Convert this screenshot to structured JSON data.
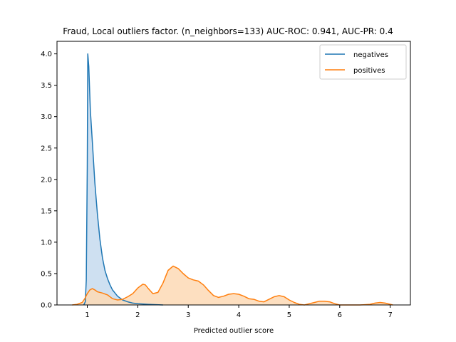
{
  "chart_data": {
    "type": "area",
    "title": "Fraud, Local outliers factor. (n_neighbors=133) AUC-ROC: 0.941, AUC-PR: 0.4",
    "xlabel": "Predicted outlier score",
    "ylabel": "",
    "xlim": [
      0.4,
      7.4
    ],
    "ylim": [
      0,
      4.2
    ],
    "xticks": [
      1,
      2,
      3,
      4,
      5,
      6,
      7
    ],
    "yticks": [
      0.0,
      0.5,
      1.0,
      1.5,
      2.0,
      2.5,
      3.0,
      3.5,
      4.0
    ],
    "ytick_labels": [
      "0.0",
      "0.5",
      "1.0",
      "1.5",
      "2.0",
      "2.5",
      "3.0",
      "3.5",
      "4.0"
    ],
    "grid": false,
    "legend_position": "top-right",
    "series": [
      {
        "name": "negatives",
        "color": "#1f77b4",
        "fill": "#c6dbef",
        "points": [
          [
            0.93,
            0.0
          ],
          [
            0.96,
            0.05
          ],
          [
            0.98,
            0.4
          ],
          [
            1.0,
            2.2
          ],
          [
            1.01,
            4.0
          ],
          [
            1.03,
            3.8
          ],
          [
            1.06,
            3.1
          ],
          [
            1.1,
            2.6
          ],
          [
            1.15,
            1.95
          ],
          [
            1.2,
            1.45
          ],
          [
            1.25,
            1.05
          ],
          [
            1.3,
            0.75
          ],
          [
            1.35,
            0.55
          ],
          [
            1.4,
            0.42
          ],
          [
            1.45,
            0.32
          ],
          [
            1.5,
            0.24
          ],
          [
            1.6,
            0.14
          ],
          [
            1.7,
            0.08
          ],
          [
            1.8,
            0.05
          ],
          [
            1.9,
            0.03
          ],
          [
            2.0,
            0.02
          ],
          [
            2.2,
            0.01
          ],
          [
            2.5,
            0.0
          ]
        ]
      },
      {
        "name": "positives",
        "color": "#ff7f0e",
        "fill": "#fdd9b5",
        "points": [
          [
            0.7,
            0.0
          ],
          [
            0.8,
            0.01
          ],
          [
            0.9,
            0.04
          ],
          [
            0.95,
            0.1
          ],
          [
            1.0,
            0.18
          ],
          [
            1.05,
            0.24
          ],
          [
            1.1,
            0.26
          ],
          [
            1.15,
            0.24
          ],
          [
            1.2,
            0.21
          ],
          [
            1.3,
            0.19
          ],
          [
            1.4,
            0.16
          ],
          [
            1.5,
            0.1
          ],
          [
            1.6,
            0.08
          ],
          [
            1.7,
            0.09
          ],
          [
            1.8,
            0.13
          ],
          [
            1.9,
            0.18
          ],
          [
            2.0,
            0.27
          ],
          [
            2.1,
            0.33
          ],
          [
            2.15,
            0.32
          ],
          [
            2.2,
            0.27
          ],
          [
            2.3,
            0.18
          ],
          [
            2.4,
            0.2
          ],
          [
            2.5,
            0.35
          ],
          [
            2.6,
            0.55
          ],
          [
            2.7,
            0.62
          ],
          [
            2.8,
            0.58
          ],
          [
            2.9,
            0.5
          ],
          [
            3.0,
            0.43
          ],
          [
            3.1,
            0.4
          ],
          [
            3.2,
            0.38
          ],
          [
            3.3,
            0.32
          ],
          [
            3.4,
            0.23
          ],
          [
            3.5,
            0.15
          ],
          [
            3.6,
            0.12
          ],
          [
            3.7,
            0.14
          ],
          [
            3.8,
            0.17
          ],
          [
            3.9,
            0.18
          ],
          [
            4.0,
            0.17
          ],
          [
            4.1,
            0.14
          ],
          [
            4.2,
            0.1
          ],
          [
            4.3,
            0.09
          ],
          [
            4.4,
            0.06
          ],
          [
            4.5,
            0.05
          ],
          [
            4.6,
            0.09
          ],
          [
            4.7,
            0.13
          ],
          [
            4.8,
            0.15
          ],
          [
            4.9,
            0.13
          ],
          [
            5.0,
            0.08
          ],
          [
            5.1,
            0.04
          ],
          [
            5.2,
            0.01
          ],
          [
            5.3,
            0.0
          ],
          [
            5.4,
            0.02
          ],
          [
            5.5,
            0.04
          ],
          [
            5.6,
            0.06
          ],
          [
            5.7,
            0.06
          ],
          [
            5.8,
            0.05
          ],
          [
            5.9,
            0.02
          ],
          [
            6.0,
            0.0
          ],
          [
            6.2,
            0.0
          ],
          [
            6.4,
            0.0
          ],
          [
            6.6,
            0.01
          ],
          [
            6.7,
            0.03
          ],
          [
            6.8,
            0.04
          ],
          [
            6.9,
            0.03
          ],
          [
            7.0,
            0.01
          ],
          [
            7.05,
            0.0
          ]
        ]
      }
    ]
  }
}
